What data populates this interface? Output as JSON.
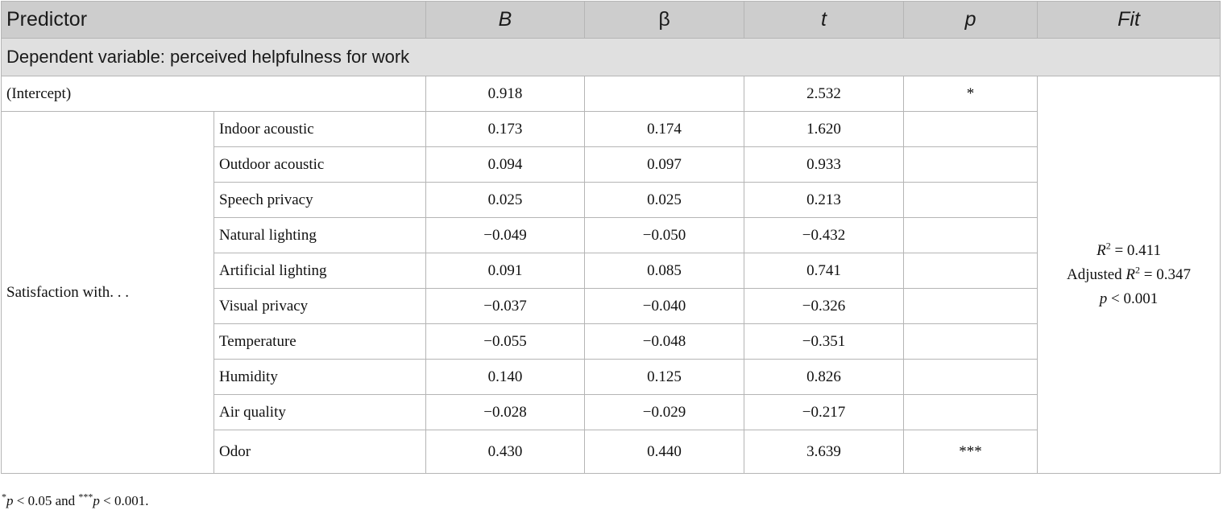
{
  "header": {
    "predictor": "Predictor",
    "B": "B",
    "beta": "β",
    "t": "t",
    "p": "p",
    "fit": "Fit"
  },
  "section_title": "Dependent variable: perceived helpfulness for work",
  "intercept": {
    "label": "(Intercept)",
    "B": "0.918",
    "beta": "",
    "t": "2.532",
    "p": "*"
  },
  "group_label": "Satisfaction with. . .",
  "rows": [
    {
      "label": "Indoor acoustic",
      "B": "0.173",
      "beta": "0.174",
      "t": "1.620",
      "p": ""
    },
    {
      "label": "Outdoor acoustic",
      "B": "0.094",
      "beta": "0.097",
      "t": "0.933",
      "p": ""
    },
    {
      "label": "Speech privacy",
      "B": "0.025",
      "beta": "0.025",
      "t": "0.213",
      "p": ""
    },
    {
      "label": "Natural lighting",
      "B": "−0.049",
      "beta": "−0.050",
      "t": "−0.432",
      "p": ""
    },
    {
      "label": "Artificial lighting",
      "B": "0.091",
      "beta": "0.085",
      "t": "0.741",
      "p": ""
    },
    {
      "label": "Visual privacy",
      "B": "−0.037",
      "beta": "−0.040",
      "t": "−0.326",
      "p": ""
    },
    {
      "label": "Temperature",
      "B": "−0.055",
      "beta": "−0.048",
      "t": "−0.351",
      "p": ""
    },
    {
      "label": "Humidity",
      "B": "0.140",
      "beta": "0.125",
      "t": "0.826",
      "p": ""
    },
    {
      "label": "Air quality",
      "B": "−0.028",
      "beta": "−0.029",
      "t": "−0.217",
      "p": ""
    },
    {
      "label": "Odor",
      "B": "0.430",
      "beta": "0.440",
      "t": "3.639",
      "p": "***"
    }
  ],
  "fit": {
    "r2_prefix": "R",
    "r2_sup": "2",
    "r2_value": " = 0.411",
    "adj_prefix": "Adjusted ",
    "adj_r": "R",
    "adj_sup": "2",
    "adj_value": " = 0.347",
    "p_label": "p",
    "p_value": " < 0.001"
  },
  "note": {
    "sup1": "*",
    "p1": "p",
    "text1": " < 0.05 and ",
    "sup2": "***",
    "p2": "p",
    "text2": " < 0.001."
  }
}
